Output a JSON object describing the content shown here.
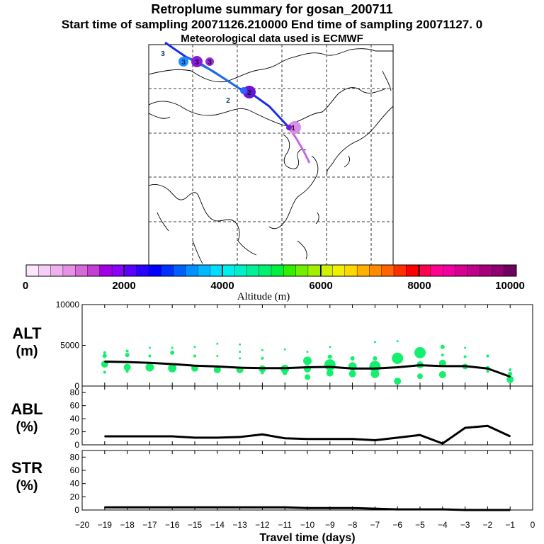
{
  "title": "Retroplume summary for gosan_200711",
  "subtitle": "Start time of sampling 20071126.210000     End time of sampling 20071127.     0",
  "subtitle2": "Meteorological data used is ECMWF",
  "map": {
    "markers": [
      "3",
      "3",
      "3",
      "3",
      "2",
      "2",
      "1"
    ]
  },
  "colorbar": {
    "ticks": [
      "0",
      "2000",
      "4000",
      "6000",
      "8000",
      "10000"
    ],
    "label": "Altitude (m)",
    "colors": [
      "#fbe6fb",
      "#f6cdf6",
      "#eeb0ee",
      "#e690e6",
      "#d66ad6",
      "#c33dd6",
      "#a000e6",
      "#8c00ff",
      "#5a00ff",
      "#2a00ff",
      "#0000ff",
      "#0030ff",
      "#0060ff",
      "#0090ff",
      "#00b8ff",
      "#00dcff",
      "#00f0f0",
      "#00f0c8",
      "#00f09c",
      "#00f070",
      "#00f040",
      "#30f000",
      "#70f000",
      "#a0f000",
      "#d0f000",
      "#f0f000",
      "#ffd800",
      "#ffb000",
      "#ff8c00",
      "#ff6400",
      "#ff3000",
      "#ff0000",
      "#ff0050",
      "#ff0090",
      "#f000a0",
      "#d80090",
      "#c0008c",
      "#a8007c",
      "#900070",
      "#700060"
    ]
  },
  "chart_data": [
    {
      "type": "line",
      "name": "ALT",
      "ylabel": "ALT\n(m)",
      "ylim": [
        0,
        10000
      ],
      "yticks": [
        0,
        5000,
        10000
      ],
      "x": [
        -19,
        -18,
        -17,
        -16,
        -15,
        -14,
        -13,
        -12,
        -11,
        -10,
        -9,
        -8,
        -7,
        -6,
        -5,
        -4,
        -3,
        -2,
        -1
      ],
      "series": [
        {
          "name": "mean altitude",
          "values": [
            3000,
            2950,
            2850,
            2700,
            2500,
            2400,
            2250,
            2200,
            2200,
            2300,
            2350,
            2150,
            2150,
            2300,
            2550,
            2450,
            2450,
            2150,
            1150
          ]
        }
      ],
      "scatter_points": [
        {
          "x": -19,
          "y": 2700,
          "r": 5
        },
        {
          "x": -19,
          "y": 3700,
          "r": 3
        },
        {
          "x": -19,
          "y": 4100,
          "r": 2
        },
        {
          "x": -19,
          "y": 1700,
          "r": 2
        },
        {
          "x": -18,
          "y": 2300,
          "r": 5
        },
        {
          "x": -18,
          "y": 3800,
          "r": 3
        },
        {
          "x": -18,
          "y": 4300,
          "r": 2
        },
        {
          "x": -18,
          "y": 1800,
          "r": 2
        },
        {
          "x": -17,
          "y": 2300,
          "r": 6
        },
        {
          "x": -17,
          "y": 3700,
          "r": 2
        },
        {
          "x": -17,
          "y": 4700,
          "r": 1.5
        },
        {
          "x": -16,
          "y": 2200,
          "r": 6
        },
        {
          "x": -16,
          "y": 4100,
          "r": 3
        },
        {
          "x": -16,
          "y": 4700,
          "r": 1.5
        },
        {
          "x": -15,
          "y": 2200,
          "r": 5
        },
        {
          "x": -15,
          "y": 3700,
          "r": 2
        },
        {
          "x": -15,
          "y": 4800,
          "r": 1.5
        },
        {
          "x": -14,
          "y": 2000,
          "r": 5
        },
        {
          "x": -14,
          "y": 3700,
          "r": 1.5
        },
        {
          "x": -14,
          "y": 5200,
          "r": 1.5
        },
        {
          "x": -13,
          "y": 2000,
          "r": 5
        },
        {
          "x": -13,
          "y": 3400,
          "r": 1.5
        },
        {
          "x": -13,
          "y": 4200,
          "r": 1.5
        },
        {
          "x": -13,
          "y": 5100,
          "r": 1.5
        },
        {
          "x": -12,
          "y": 2100,
          "r": 5
        },
        {
          "x": -12,
          "y": 3400,
          "r": 2
        },
        {
          "x": -12,
          "y": 4400,
          "r": 1.5
        },
        {
          "x": -12,
          "y": 1600,
          "r": 2
        },
        {
          "x": -11,
          "y": 2100,
          "r": 6
        },
        {
          "x": -11,
          "y": 1600,
          "r": 3
        },
        {
          "x": -11,
          "y": 4500,
          "r": 1.5
        },
        {
          "x": -10,
          "y": 3100,
          "r": 6
        },
        {
          "x": -10,
          "y": 2100,
          "r": 5
        },
        {
          "x": -10,
          "y": 1100,
          "r": 4
        },
        {
          "x": -10,
          "y": 4200,
          "r": 1.5
        },
        {
          "x": -9,
          "y": 2600,
          "r": 8
        },
        {
          "x": -9,
          "y": 1600,
          "r": 5
        },
        {
          "x": -9,
          "y": 3600,
          "r": 3
        },
        {
          "x": -9,
          "y": 4800,
          "r": 1.5
        },
        {
          "x": -8,
          "y": 2400,
          "r": 6
        },
        {
          "x": -8,
          "y": 1500,
          "r": 5
        },
        {
          "x": -8,
          "y": 3400,
          "r": 3
        },
        {
          "x": -7,
          "y": 2400,
          "r": 8
        },
        {
          "x": -7,
          "y": 1500,
          "r": 6
        },
        {
          "x": -7,
          "y": 3400,
          "r": 3
        },
        {
          "x": -7,
          "y": 5400,
          "r": 1.5
        },
        {
          "x": -6,
          "y": 3400,
          "r": 8
        },
        {
          "x": -6,
          "y": 600,
          "r": 5
        },
        {
          "x": -6,
          "y": 5500,
          "r": 1.5
        },
        {
          "x": -5,
          "y": 4100,
          "r": 8
        },
        {
          "x": -5,
          "y": 2600,
          "r": 5
        },
        {
          "x": -5,
          "y": 1200,
          "r": 4
        },
        {
          "x": -4,
          "y": 2800,
          "r": 5
        },
        {
          "x": -4,
          "y": 1400,
          "r": 5
        },
        {
          "x": -4,
          "y": 4800,
          "r": 3
        },
        {
          "x": -4,
          "y": 3800,
          "r": 2
        },
        {
          "x": -3,
          "y": 2400,
          "r": 4
        },
        {
          "x": -3,
          "y": 3600,
          "r": 2
        },
        {
          "x": -3,
          "y": 4700,
          "r": 1.5
        },
        {
          "x": -2,
          "y": 2200,
          "r": 3
        },
        {
          "x": -2,
          "y": 3700,
          "r": 2
        },
        {
          "x": -2,
          "y": 1800,
          "r": 2
        },
        {
          "x": -1,
          "y": 800,
          "r": 5
        },
        {
          "x": -1,
          "y": 1500,
          "r": 3
        },
        {
          "x": -1,
          "y": 2000,
          "r": 2
        }
      ]
    },
    {
      "type": "line",
      "name": "ABL",
      "ylabel": "ABL\n(%)",
      "ylim": [
        0,
        90
      ],
      "yticks": [
        0,
        20,
        40,
        60,
        80
      ],
      "x": [
        -19,
        -18,
        -17,
        -16,
        -15,
        -14,
        -13,
        -12,
        -11,
        -10,
        -9,
        -8,
        -7,
        -6,
        -5,
        -4,
        -3,
        -2,
        -1
      ],
      "series": [
        {
          "name": "ABL fraction",
          "values": [
            13,
            13,
            13,
            13,
            11,
            11,
            12,
            16,
            10,
            9,
            9,
            9,
            7,
            11,
            15,
            2,
            26,
            29,
            13
          ]
        }
      ]
    },
    {
      "type": "line",
      "name": "STR",
      "ylabel": "STR\n(%)",
      "ylim": [
        0,
        90
      ],
      "yticks": [
        0,
        20,
        40,
        60,
        80
      ],
      "xlabel": "Travel time (days)",
      "xticks": [
        -20,
        -19,
        -18,
        -17,
        -16,
        -15,
        -14,
        -13,
        -12,
        -11,
        -10,
        -9,
        -8,
        -7,
        -6,
        -5,
        -4,
        -3,
        -2,
        -1,
        0
      ],
      "x": [
        -19,
        -18,
        -17,
        -16,
        -15,
        -14,
        -13,
        -12,
        -11,
        -10,
        -9,
        -8,
        -7,
        -6,
        -5,
        -4,
        -3,
        -2,
        -1
      ],
      "series": [
        {
          "name": "stratospheric fraction",
          "values": [
            4,
            4,
            4,
            4,
            4,
            4,
            4,
            4,
            4,
            3,
            3,
            3,
            2,
            1,
            1,
            1,
            0,
            0,
            0
          ]
        }
      ]
    }
  ]
}
